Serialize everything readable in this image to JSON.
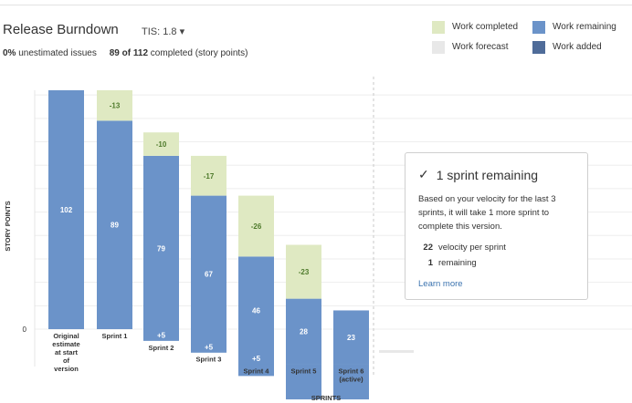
{
  "header": {
    "title": "Release Burndown",
    "version_label": "TIS: 1.8 ▾",
    "unestimated_pct": "0%",
    "unestimated_text": "unestimated issues",
    "completed_count": "89 of 112",
    "completed_text": "completed (story points)"
  },
  "legend": [
    {
      "label": "Work completed",
      "color": "#dfe9c2"
    },
    {
      "label": "Work remaining",
      "color": "#6b93c9"
    },
    {
      "label": "Work forecast",
      "color": "#e8e8e8"
    },
    {
      "label": "Work added",
      "color": "#4f6c99"
    }
  ],
  "panel": {
    "check_icon": "✓",
    "heading": "1 sprint remaining",
    "description": "Based on your velocity for the last 3 sprints, it will take 1 more sprint to complete this version.",
    "velocity_value": "22",
    "velocity_text": "velocity per sprint",
    "remaining_value": "1",
    "remaining_text": "remaining",
    "link": "Learn more"
  },
  "chart_data": {
    "type": "bar",
    "xlabel": "SPRINTS",
    "ylabel": "STORY POINTS",
    "y_tick_labels": [
      "0"
    ],
    "ylim": [
      0,
      102
    ],
    "grid": true,
    "categories": [
      "Original estimate at start of version",
      "Sprint 1",
      "Sprint 2",
      "Sprint 3",
      "Sprint 4",
      "Sprint 5",
      "Sprint 6 (active)"
    ],
    "series": [
      {
        "name": "Work remaining",
        "values": [
          102,
          89,
          79,
          67,
          46,
          28,
          23
        ]
      },
      {
        "name": "Work completed",
        "values": [
          0,
          13,
          10,
          17,
          26,
          23,
          0
        ]
      },
      {
        "name": "Work added",
        "values": [
          0,
          0,
          5,
          5,
          5,
          0,
          0
        ]
      }
    ],
    "data_labels": {
      "remaining": [
        "102",
        "89",
        "79",
        "67",
        "46",
        "28",
        "23"
      ],
      "completed": [
        "",
        "-13",
        "-10",
        "-17",
        "-26",
        "-23",
        ""
      ],
      "added": [
        "",
        "",
        "+5",
        "+5",
        "+5",
        "",
        ""
      ]
    },
    "colors": {
      "remaining": "#6b93c9",
      "completed": "#dfe9c2",
      "completed_text": "#4e7a2b",
      "added": "#4f6c99",
      "forecast": "#e8e8e8"
    }
  }
}
